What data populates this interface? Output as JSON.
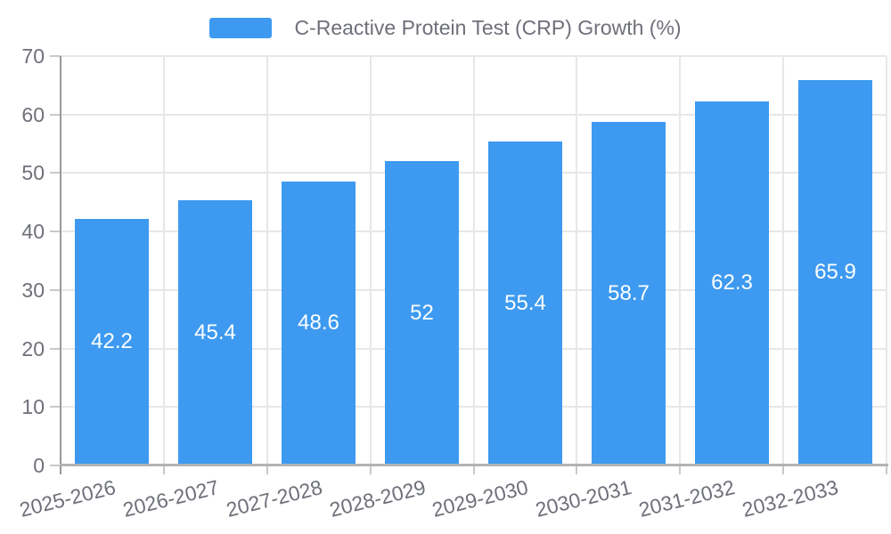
{
  "chart_data": {
    "type": "bar",
    "title": "C-Reactive Protein Test (CRP) Growth (%)",
    "legend": [
      "C-Reactive Protein Test (CRP) Growth (%)"
    ],
    "legend_position": "top-center",
    "categories": [
      "2025-2026",
      "2026-2027",
      "2027-2028",
      "2028-2029",
      "2029-2030",
      "2030-2031",
      "2031-2032",
      "2032-2033"
    ],
    "series": [
      {
        "name": "C-Reactive Protein Test (CRP) Growth (%)",
        "values": [
          42.2,
          45.4,
          48.6,
          52,
          55.4,
          58.7,
          62.3,
          65.9
        ]
      }
    ],
    "bar_value_labels": [
      "42.2",
      "45.4",
      "48.6",
      "52",
      "55.4",
      "58.7",
      "62.3",
      "65.9"
    ],
    "xlabel": "",
    "ylabel": "",
    "ylim": [
      0,
      70
    ],
    "yticks": [
      0,
      10,
      20,
      30,
      40,
      50,
      60,
      70
    ],
    "grid": "horizontal and vertical light gray split lines",
    "x_labels_rotated": true,
    "colors": {
      "bar": "#3D9AF0",
      "bar_label": "#FFFFFF",
      "axis_text": "#6E7079",
      "grid_line": "#E7E7E7",
      "y_axis_line": "#999999",
      "x_axis_line": "#B3B3B3",
      "tick": "#C9C9C9"
    }
  }
}
